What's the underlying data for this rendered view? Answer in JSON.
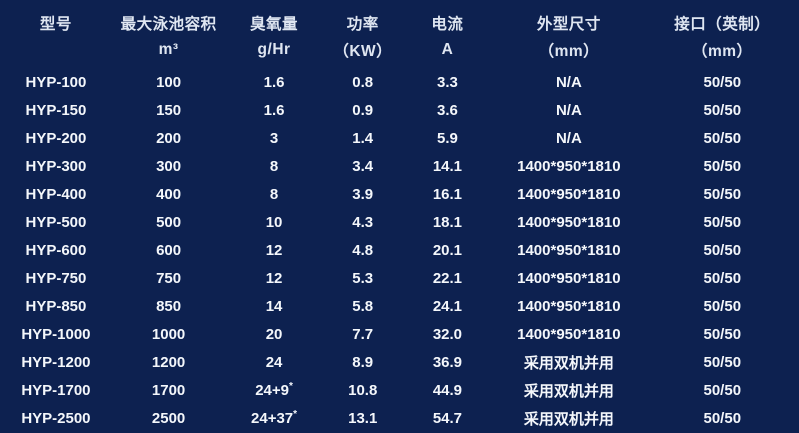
{
  "page": {
    "background_color": "#0d2150",
    "header_text_color": "#dfe6f1",
    "body_text_color": "#f4f7fb"
  },
  "chart_data": {
    "type": "table",
    "title": "",
    "columns": [
      {
        "id": "model",
        "title": "型号",
        "unit": ""
      },
      {
        "id": "volume",
        "title": "最大泳池容积",
        "unit": "m³"
      },
      {
        "id": "ozone",
        "title": "臭氧量",
        "unit": "g/Hr"
      },
      {
        "id": "power",
        "title": "功率",
        "unit": "（KW）"
      },
      {
        "id": "current",
        "title": "电流",
        "unit": "A"
      },
      {
        "id": "size",
        "title": "外型尺寸",
        "unit": "（mm）"
      },
      {
        "id": "port",
        "title": "接口（英制）",
        "unit": "（mm）"
      }
    ],
    "rows": [
      [
        "HYP-100",
        "100",
        "1.6",
        "0.8",
        "3.3",
        "N/A",
        "50/50"
      ],
      [
        "HYP-150",
        "150",
        "1.6",
        "0.9",
        "3.6",
        "N/A",
        "50/50"
      ],
      [
        "HYP-200",
        "200",
        "3",
        "1.4",
        "5.9",
        "N/A",
        "50/50"
      ],
      [
        "HYP-300",
        "300",
        "8",
        "3.4",
        "14.1",
        "1400*950*1810",
        "50/50"
      ],
      [
        "HYP-400",
        "400",
        "8",
        "3.9",
        "16.1",
        "1400*950*1810",
        "50/50"
      ],
      [
        "HYP-500",
        "500",
        "10",
        "4.3",
        "18.1",
        "1400*950*1810",
        "50/50"
      ],
      [
        "HYP-600",
        "600",
        "12",
        "4.8",
        "20.1",
        "1400*950*1810",
        "50/50"
      ],
      [
        "HYP-750",
        "750",
        "12",
        "5.3",
        "22.1",
        "1400*950*1810",
        "50/50"
      ],
      [
        "HYP-850",
        "850",
        "14",
        "5.8",
        "24.1",
        "1400*950*1810",
        "50/50"
      ],
      [
        "HYP-1000",
        "1000",
        "20",
        "7.7",
        "32.0",
        "1400*950*1810",
        "50/50"
      ],
      [
        "HYP-1200",
        "1200",
        "24",
        "8.9",
        "36.9",
        "采用双机并用",
        "50/50"
      ],
      [
        "HYP-1700",
        "1700",
        "24+9*",
        "10.8",
        "44.9",
        "采用双机并用",
        "50/50"
      ],
      [
        "HYP-2500",
        "2500",
        "24+37*",
        "13.1",
        "54.7",
        "采用双机并用",
        "50/50"
      ]
    ]
  }
}
